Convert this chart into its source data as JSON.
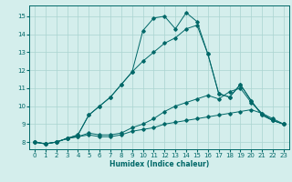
{
  "xlabel": "Humidex (Indice chaleur)",
  "bg_color": "#d4eeec",
  "grid_color": "#aad4d0",
  "line_color": "#006868",
  "xlim": [
    -0.5,
    23.5
  ],
  "ylim": [
    7.6,
    15.6
  ],
  "xticks": [
    0,
    1,
    2,
    3,
    4,
    5,
    6,
    7,
    8,
    9,
    10,
    11,
    12,
    13,
    14,
    15,
    16,
    17,
    18,
    19,
    20,
    21,
    22,
    23
  ],
  "yticks": [
    8,
    9,
    10,
    11,
    12,
    13,
    14,
    15
  ],
  "series": [
    [
      8.0,
      7.9,
      8.0,
      8.2,
      8.3,
      8.4,
      8.3,
      8.3,
      8.4,
      8.6,
      8.7,
      8.8,
      9.0,
      9.1,
      9.2,
      9.3,
      9.4,
      9.5,
      9.6,
      9.7,
      9.8,
      9.6,
      9.3,
      9.0
    ],
    [
      8.0,
      7.9,
      8.0,
      8.2,
      8.3,
      8.5,
      8.4,
      8.4,
      8.5,
      8.8,
      9.0,
      9.3,
      9.7,
      10.0,
      10.2,
      10.4,
      10.6,
      10.4,
      10.8,
      11.0,
      10.2,
      9.6,
      9.2,
      9.0
    ],
    [
      8.0,
      7.9,
      8.0,
      8.2,
      8.4,
      9.5,
      10.0,
      10.5,
      11.2,
      11.9,
      12.5,
      13.0,
      13.5,
      13.8,
      14.3,
      14.5,
      12.9,
      10.7,
      10.5,
      11.2,
      10.3,
      9.5,
      9.2,
      9.0
    ],
    [
      8.0,
      7.9,
      8.0,
      8.2,
      8.4,
      9.5,
      10.0,
      10.5,
      11.2,
      11.9,
      14.2,
      14.9,
      15.0,
      14.3,
      15.2,
      14.7,
      12.9,
      10.7,
      10.5,
      11.2,
      10.3,
      9.5,
      9.2,
      9.0
    ]
  ]
}
